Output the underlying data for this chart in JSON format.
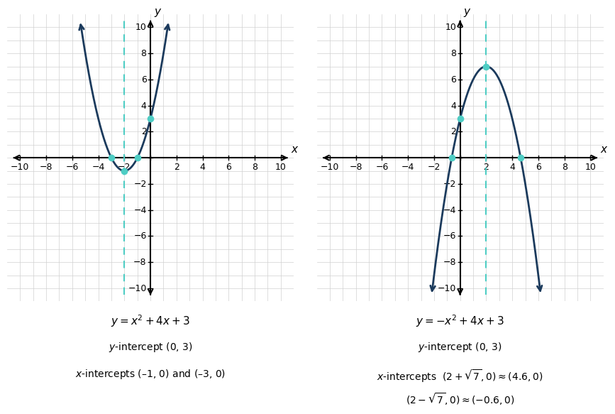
{
  "left": {
    "equation": "$y = x^2 + 4x + 3$",
    "y_intercept_label": "$y$-intercept (0, 3)",
    "x_intercepts_label": "$x$-intercepts (–1, 0) and (–3, 0)",
    "axis_of_symmetry": -2,
    "vertex": [
      -2,
      -1
    ],
    "points": [
      [
        -3,
        0
      ],
      [
        -1,
        0
      ],
      [
        0,
        3
      ]
    ],
    "xlim": [
      -10,
      10
    ],
    "ylim": [
      -10,
      10
    ]
  },
  "right": {
    "equation": "$y = -x^2 + 4x + 3$",
    "y_intercept_label": "$y$-intercept (0, 3)",
    "x_intercepts_label1": "$x$-intercepts  $(2 + \\sqrt{7}, 0) \\approx (4.6, 0)$",
    "x_intercepts_label2": "$(2 - \\sqrt{7}, 0) \\approx (-0.6, 0)$",
    "axis_of_symmetry": 2,
    "vertex": [
      2,
      7
    ],
    "points": [
      [
        -0.646,
        0
      ],
      [
        4.646,
        0
      ],
      [
        0,
        3
      ]
    ],
    "xlim": [
      -10,
      10
    ],
    "ylim": [
      -10,
      10
    ]
  },
  "curve_color": "#1B3A5C",
  "point_color": "#4ECDC4",
  "axis_sym_color": "#4ECDC4",
  "grid_color_major": "#D0D0D0",
  "bg_color": "#FFFFFF",
  "font_size_eq": 11,
  "font_size_label": 10,
  "font_size_tick": 9,
  "font_size_axis_label": 11,
  "curve_lw": 2.0,
  "arrow_lw": 2.0
}
